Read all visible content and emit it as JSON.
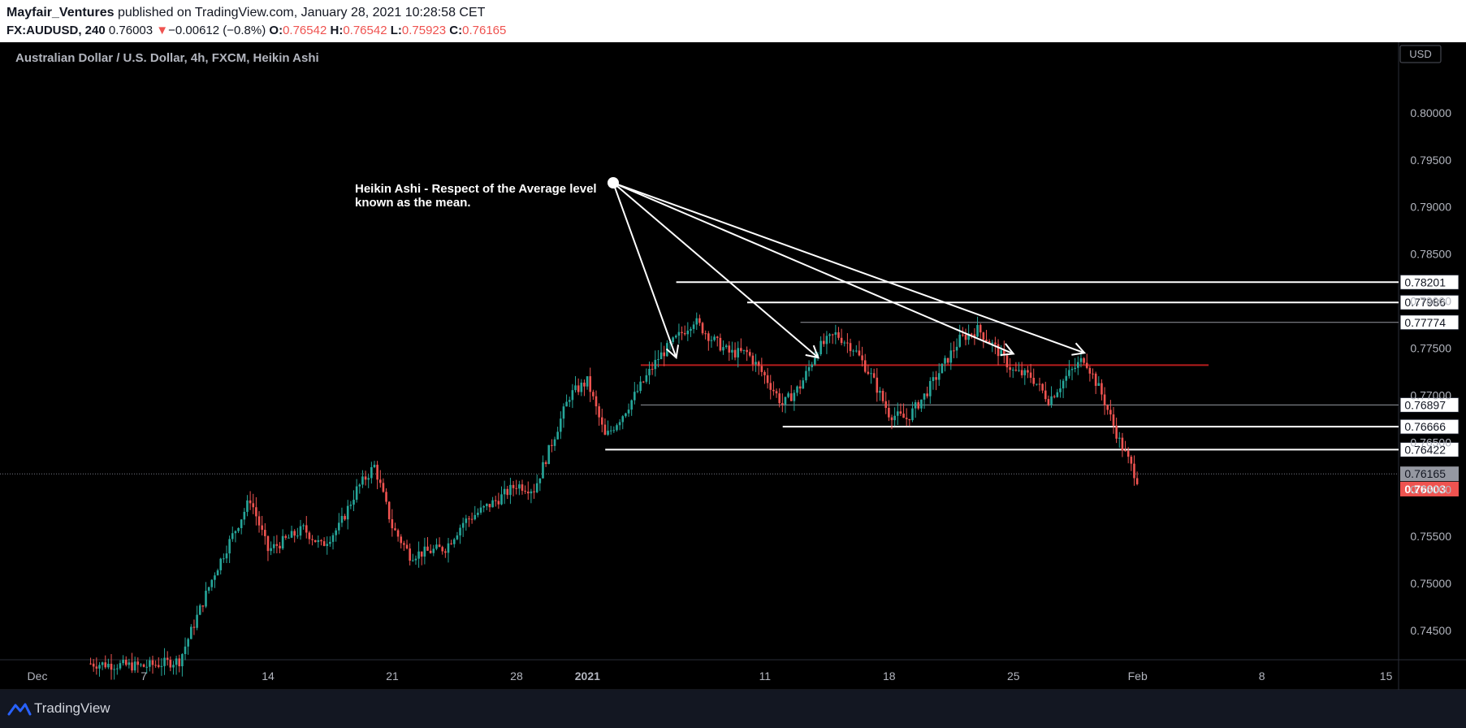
{
  "header": {
    "author": "Mayfair_Ventures",
    "published_text": "published on TradingView.com, January 28, 2021 10:28:58 CET",
    "symbol": "FX:AUDUSD, 240",
    "last_price": "0.76003",
    "down_arrow": "▼",
    "change": "−0.00612 (−0.8%)",
    "o_label": "O:",
    "open": "0.76542",
    "h_label": "H:",
    "high": "0.76542",
    "l_label": "L:",
    "low": "0.75923",
    "c_label": "C:",
    "close": "0.76165"
  },
  "chart_data": {
    "type": "candlestick",
    "title": "Australian Dollar / U.S. Dollar, 4h, FXCM, Heikin Ashi",
    "currency": "USD",
    "candle_style": "Heikin Ashi",
    "colors": {
      "up": "#26a69a",
      "down": "#ef5350",
      "background": "#000000",
      "axis_text": "#b2b5be",
      "mean_line": "#b71c1c"
    },
    "y_ticks": [
      "0.80000",
      "0.79500",
      "0.79000",
      "0.78500",
      "0.78000",
      "0.77500",
      "0.77000",
      "0.76500",
      "0.76000",
      "0.75500",
      "0.75000",
      "0.74500"
    ],
    "y_range": [
      0.7419,
      0.8075
    ],
    "x_ticks": [
      "Dec",
      "7",
      "14",
      "21",
      "28",
      "2021",
      "11",
      "18",
      "25",
      "Feb",
      "8",
      "15"
    ],
    "close_path": [
      [
        "Dec 4",
        0.7415
      ],
      [
        "Dec 7",
        0.7412
      ],
      [
        "Dec 9",
        0.7418
      ],
      [
        "Dec 11",
        0.7512
      ],
      [
        "Dec 13",
        0.759
      ],
      [
        "Dec 14",
        0.7535
      ],
      [
        "Dec 16",
        0.7558
      ],
      [
        "Dec 17",
        0.754
      ],
      [
        "Dec 18",
        0.756
      ],
      [
        "Dec 19",
        0.76
      ],
      [
        "Dec 20",
        0.7625
      ],
      [
        "Dec 21",
        0.756
      ],
      [
        "Dec 22",
        0.753
      ],
      [
        "Dec 24",
        0.7538
      ],
      [
        "Dec 25",
        0.7565
      ],
      [
        "Dec 27",
        0.759
      ],
      [
        "Dec 28",
        0.7605
      ],
      [
        "Dec 29",
        0.76
      ],
      [
        "Dec 30",
        0.765
      ],
      [
        "Dec 31",
        0.77
      ],
      [
        "Jan 1",
        0.7715
      ],
      [
        "Jan 2",
        0.7655
      ],
      [
        "Jan 3",
        0.768
      ],
      [
        "Jan 4",
        0.771
      ],
      [
        "Jan 5",
        0.774
      ],
      [
        "Jan 6",
        0.776
      ],
      [
        "Jan 7",
        0.778
      ],
      [
        "Jan 8",
        0.776
      ],
      [
        "Jan 9",
        0.7745
      ],
      [
        "Jan 10",
        0.7745
      ],
      [
        "Jan 11",
        0.772
      ],
      [
        "Jan 12",
        0.769
      ],
      [
        "Jan 13",
        0.771
      ],
      [
        "Jan 14",
        0.775
      ],
      [
        "Jan 15",
        0.7765
      ],
      [
        "Jan 16",
        0.775
      ],
      [
        "Jan 17",
        0.772
      ],
      [
        "Jan 18",
        0.768
      ],
      [
        "Jan 19",
        0.7675
      ],
      [
        "Jan 20",
        0.77
      ],
      [
        "Jan 21",
        0.773
      ],
      [
        "Jan 22",
        0.776
      ],
      [
        "Jan 23",
        0.777
      ],
      [
        "Jan 24",
        0.775
      ],
      [
        "Jan 25",
        0.7725
      ],
      [
        "Jan 26",
        0.772
      ],
      [
        "Jan 27",
        0.7695
      ],
      [
        "Jan 28",
        0.772
      ],
      [
        "Jan 29",
        0.774
      ],
      [
        "Jan 30",
        0.77
      ],
      [
        "Jan 31",
        0.765
      ],
      [
        "Feb 1",
        0.761
      ]
    ],
    "levels": [
      {
        "price": 0.78201,
        "label": "0.78201",
        "from": "Jan 6"
      },
      {
        "price": 0.77986,
        "label": "0.77986",
        "from": "Jan 10"
      },
      {
        "price": 0.77774,
        "label": "0.77774",
        "from": "Jan 13"
      },
      {
        "price": 0.76897,
        "label": "0.76897",
        "from": "Jan 4"
      },
      {
        "price": 0.76666,
        "label": "0.76666",
        "from": "Jan 12"
      },
      {
        "price": 0.76422,
        "label": "0.76422",
        "from": "Jan 2"
      }
    ],
    "mean_line": {
      "price": 0.7732,
      "from": "Jan 4",
      "to": "Feb 5"
    },
    "price_labels": {
      "close": "0.76165",
      "last": "0.76003"
    },
    "annotation": {
      "text_line1": "Heikin Ashi - Respect of the Average level",
      "text_line2": "known as the mean.",
      "arrows_to": [
        [
          "Jan 6",
          0.774
        ],
        [
          "Jan 14",
          0.774
        ],
        [
          "Jan 25",
          0.7744
        ],
        [
          "Jan 29",
          0.7745
        ]
      ]
    }
  },
  "footer": {
    "brand": "TradingView"
  }
}
